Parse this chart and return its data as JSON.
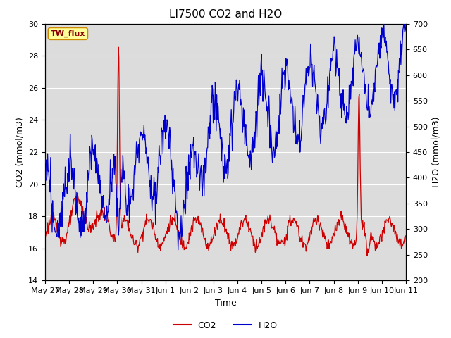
{
  "title": "LI7500 CO2 and H2O",
  "xlabel": "Time",
  "ylabel_left": "CO2 (mmol/m3)",
  "ylabel_right": "H2O (mmol/m3)",
  "ylim_left": [
    14,
    30
  ],
  "ylim_right": [
    200,
    700
  ],
  "yticks_left": [
    14,
    16,
    18,
    20,
    22,
    24,
    26,
    28,
    30
  ],
  "yticks_right": [
    200,
    250,
    300,
    350,
    400,
    450,
    500,
    550,
    600,
    650,
    700
  ],
  "xtick_labels": [
    "May 27",
    "May 28",
    "May 29",
    "May 30",
    "May 31",
    "Jun 1",
    "Jun 2",
    "Jun 3",
    "Jun 4",
    "Jun 5",
    "Jun 6",
    "Jun 7",
    "Jun 8",
    "Jun 9",
    "Jun 10",
    "Jun 11"
  ],
  "co2_color": "#cc0000",
  "h2o_color": "#0000cc",
  "background_color": "#dcdcdc",
  "legend_label": "TW_flux",
  "legend_box_color": "#ffff99",
  "legend_box_edge": "#cc8800",
  "title_fontsize": 11,
  "axis_label_fontsize": 9,
  "tick_fontsize": 8,
  "linewidth": 0.9
}
